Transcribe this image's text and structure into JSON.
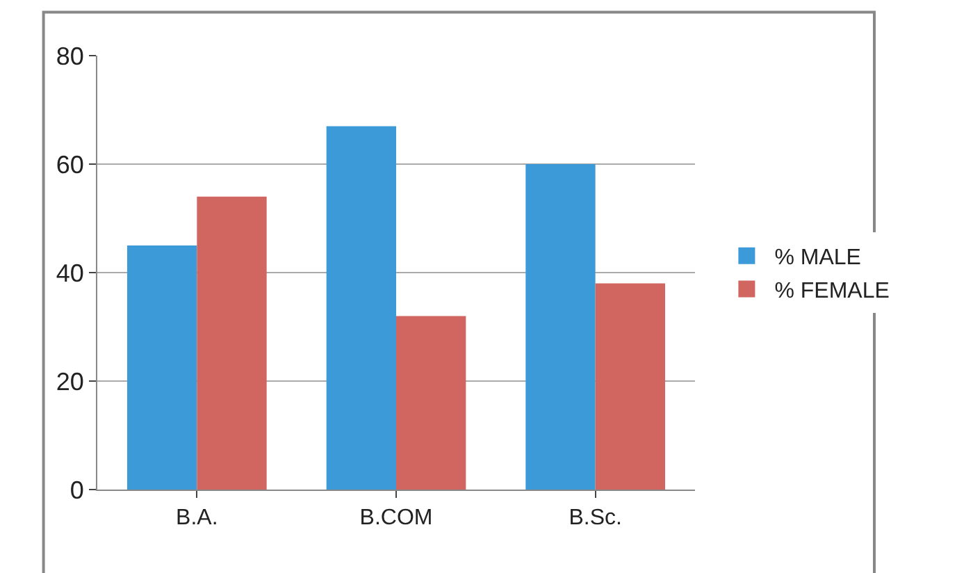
{
  "chart_data": {
    "type": "bar",
    "categories": [
      "B.A.",
      "B.COM",
      "B.Sc."
    ],
    "series": [
      {
        "name": "% MALE",
        "color": "#3d9ad8",
        "values": [
          45,
          67,
          60
        ]
      },
      {
        "name": "% FEMALE",
        "color": "#d0665f",
        "values": [
          54,
          32,
          38
        ]
      }
    ],
    "ylim": [
      0,
      80
    ],
    "yticks": [
      0,
      20,
      40,
      60,
      80
    ],
    "grid": "y",
    "legend": "right"
  }
}
